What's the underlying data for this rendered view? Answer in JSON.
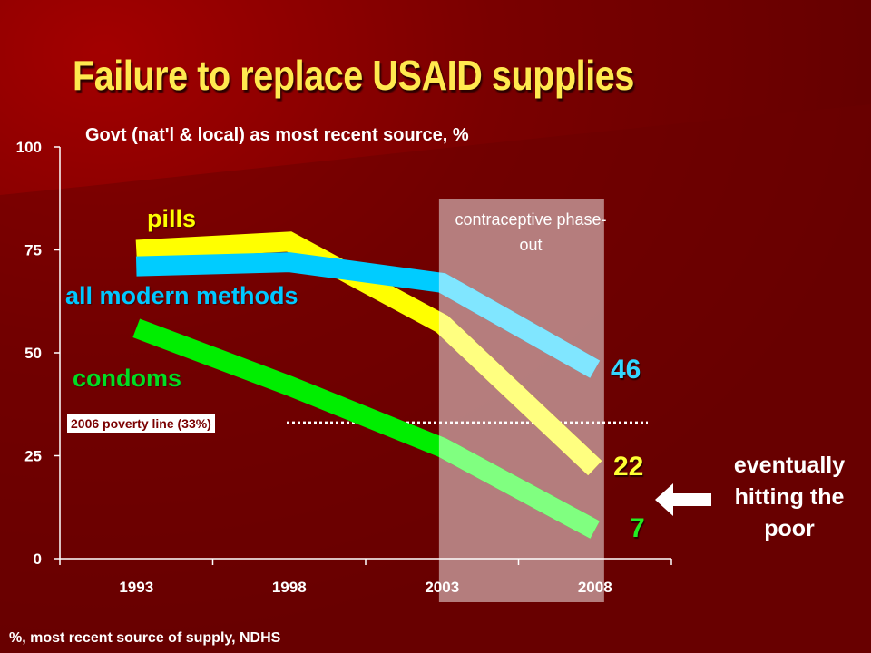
{
  "title": "Failure to replace USAID supplies",
  "subtitle": "Govt (nat'l & local) as most recent source, %",
  "phaseout_label": "contraceptive phase-out",
  "poverty_label": "2006 poverty line (33%)",
  "note": "eventually hitting the poor",
  "footer": "%, most recent source of supply, NDHS",
  "colors": {
    "background": "#6f0000",
    "pills": "#ffff00",
    "all_modern": "#00ccff",
    "condoms": "#00ee00",
    "band": "#c49898"
  },
  "chart_data": {
    "type": "line",
    "x": [
      1993,
      1998,
      2003,
      2008
    ],
    "xticks": [
      "1993",
      "1998",
      "2003",
      "2008"
    ],
    "xlim": [
      1990.5,
      2010.5
    ],
    "yticks": [
      "0",
      "25",
      "50",
      "75",
      "100"
    ],
    "ylim": [
      0,
      100
    ],
    "grid": false,
    "series": [
      {
        "name": "pills",
        "key": "pills",
        "values": [
          75,
          77,
          57,
          22
        ],
        "end_label": "22"
      },
      {
        "name": "all modern methods",
        "key": "all_modern",
        "values": [
          71,
          72,
          67,
          46
        ],
        "end_label": "46"
      },
      {
        "name": "condoms",
        "key": "condoms",
        "values": [
          56,
          42,
          27,
          7
        ],
        "end_label": "7"
      }
    ],
    "reference_line": {
      "y": 33,
      "label": "2006 poverty line (33%)"
    },
    "shaded_region": {
      "x0": 2002.9,
      "x1": 2008.3,
      "label": "contraceptive phase-out"
    }
  }
}
